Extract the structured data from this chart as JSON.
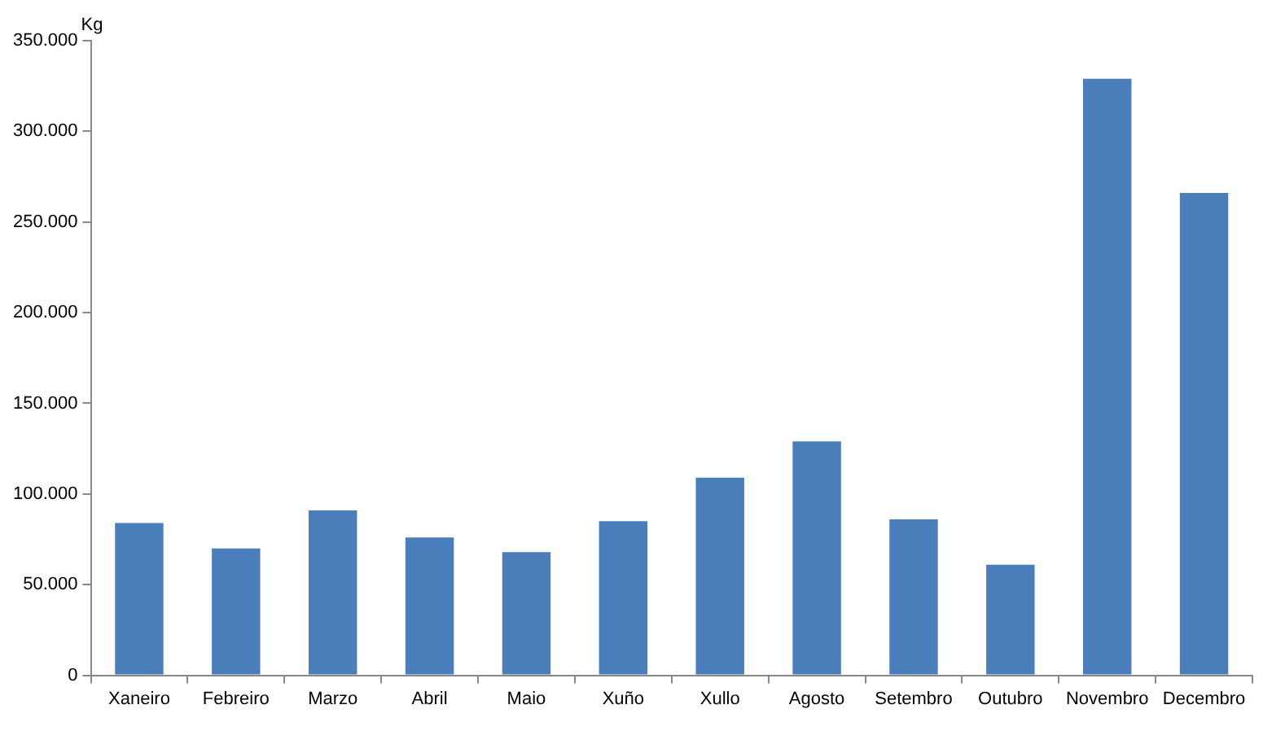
{
  "chart_data": {
    "type": "bar",
    "ylabel": "Kg",
    "categories": [
      "Xaneiro",
      "Febreiro",
      "Marzo",
      "Abril",
      "Maio",
      "Xuño",
      "Xullo",
      "Agosto",
      "Setembro",
      "Outubro",
      "Novembro",
      "Decembro"
    ],
    "values": [
      84000,
      70000,
      91000,
      76000,
      68000,
      85000,
      109000,
      129000,
      86000,
      61000,
      329000,
      266000
    ],
    "color": "#4a7ebb",
    "ylim": [
      0,
      350000
    ],
    "yticks": [
      0,
      {
        "value": 50000,
        "label": "50.000"
      },
      {
        "value": 100000,
        "label": "100.000"
      },
      {
        "value": 150000,
        "label": "150.000"
      },
      {
        "value": 200000,
        "label": "200.000"
      },
      {
        "value": 250000,
        "label": "250.000"
      },
      {
        "value": 300000,
        "label": "300.000"
      },
      {
        "value": 350000,
        "label": "350.000"
      }
    ],
    "grid": false,
    "legend": false
  }
}
